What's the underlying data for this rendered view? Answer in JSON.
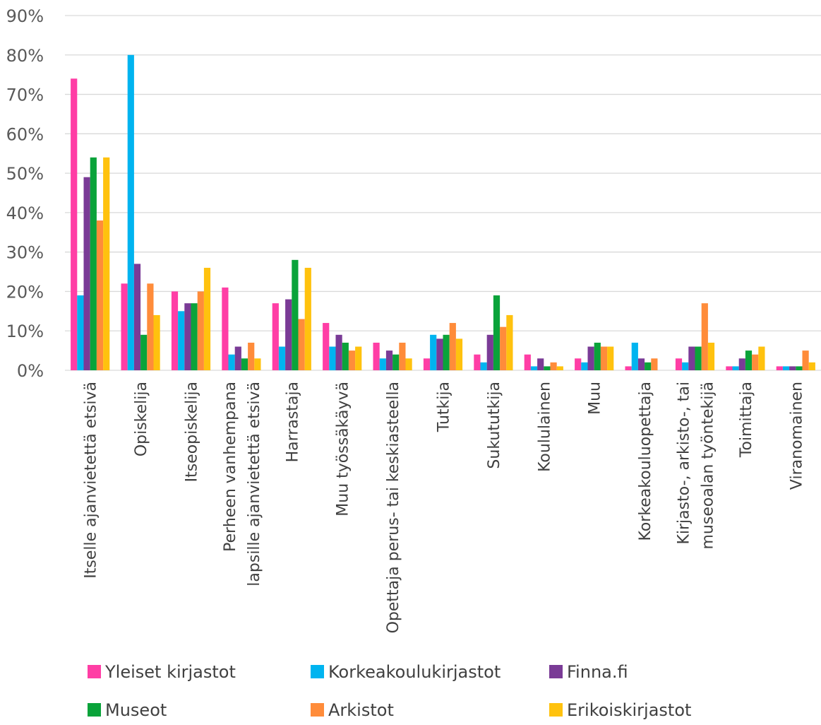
{
  "chart_data": {
    "type": "bar",
    "title": "",
    "xlabel": "",
    "ylabel": "",
    "ylim": [
      0,
      90
    ],
    "yticks": [
      "0%",
      "10%",
      "20%",
      "30%",
      "40%",
      "50%",
      "60%",
      "70%",
      "80%",
      "90%"
    ],
    "grid": true,
    "legend_position": "bottom",
    "categories": [
      [
        "Itselle ajanvietettä etsivä"
      ],
      [
        "Opiskelija"
      ],
      [
        "Itseopiskelija"
      ],
      [
        "Perheen vanhempana",
        "lapsille ajanvietettä etsivä"
      ],
      [
        "Harrastaja"
      ],
      [
        "Muu työssäkäyvä"
      ],
      [
        "Opettaja perus- tai keskiasteella"
      ],
      [
        "Tutkija"
      ],
      [
        "Sukututkija"
      ],
      [
        "Koululainen"
      ],
      [
        "Muu"
      ],
      [
        "Korkeakouluopettaja"
      ],
      [
        "Kirjasto-, arkisto-, tai",
        "museoalan työntekijä"
      ],
      [
        "Toimittaja"
      ],
      [
        "Viranomainen"
      ]
    ],
    "series": [
      {
        "name": "Yleiset kirjastot",
        "color": "#ff3ea5",
        "values": [
          74,
          22,
          20,
          21,
          17,
          12,
          7,
          3,
          4,
          4,
          3,
          1,
          3,
          1,
          1
        ]
      },
      {
        "name": "Korkeakoulukirjastot",
        "color": "#00b4f0",
        "values": [
          19,
          80,
          15,
          4,
          6,
          6,
          3,
          9,
          2,
          1,
          2,
          7,
          2,
          1,
          1
        ]
      },
      {
        "name": "Finna.fi",
        "color": "#7a3b96",
        "values": [
          49,
          27,
          17,
          6,
          18,
          9,
          5,
          8,
          9,
          3,
          6,
          3,
          6,
          3,
          1
        ]
      },
      {
        "name": "Museot",
        "color": "#0aa33a",
        "values": [
          54,
          9,
          17,
          3,
          28,
          7,
          4,
          9,
          19,
          1,
          7,
          2,
          6,
          5,
          1
        ]
      },
      {
        "name": "Arkistot",
        "color": "#ff8c3a",
        "values": [
          38,
          22,
          20,
          7,
          13,
          5,
          7,
          12,
          11,
          2,
          6,
          3,
          17,
          4,
          5
        ]
      },
      {
        "name": "Erikoiskirjastot",
        "color": "#ffc20e",
        "values": [
          54,
          14,
          26,
          3,
          26,
          6,
          3,
          8,
          14,
          1,
          6,
          0,
          7,
          6,
          2
        ]
      }
    ]
  }
}
